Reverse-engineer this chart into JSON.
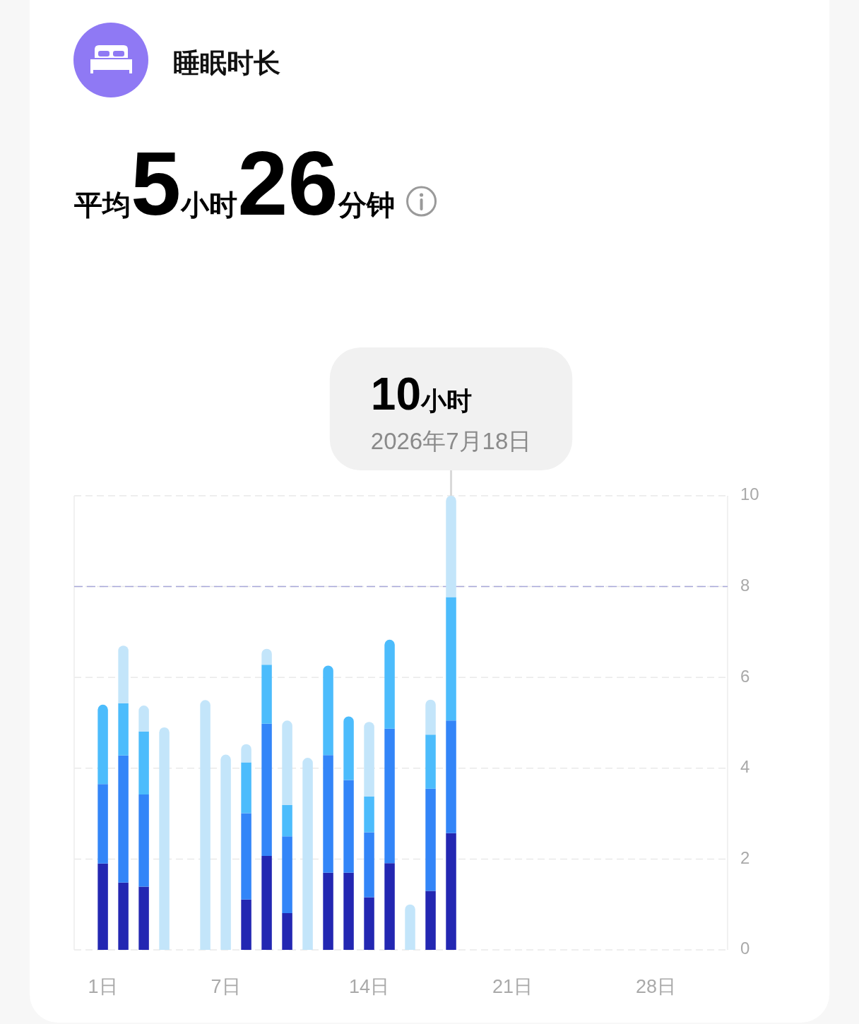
{
  "chart_data": {
    "type": "bar",
    "title": "睡眠时长",
    "subtitle": "平均5小时26分钟",
    "x": [
      1,
      2,
      3,
      4,
      5,
      6,
      7,
      8,
      9,
      10,
      11,
      12,
      13,
      14,
      15,
      16,
      17,
      18
    ],
    "xlim": [
      -0.4,
      31.5
    ],
    "xticks": [
      {
        "value": 1,
        "label": "1日"
      },
      {
        "value": 7,
        "label": "7日"
      },
      {
        "value": 14,
        "label": "14日"
      },
      {
        "value": 21,
        "label": "21日"
      },
      {
        "value": 28,
        "label": "28日"
      }
    ],
    "ylim": [
      0,
      10
    ],
    "yticks": [
      0,
      2,
      4,
      6,
      8,
      10
    ],
    "stacked": true,
    "grid": "y",
    "series": [
      {
        "color": "#2327b2",
        "values": [
          1.9,
          1.48,
          1.39,
          null,
          null,
          null,
          null,
          1.11,
          2.07,
          0.81,
          null,
          1.7,
          1.7,
          1.16,
          1.91,
          null,
          1.3,
          2.57
        ]
      },
      {
        "color": "#3385f8",
        "values": [
          1.75,
          2.8,
          2.03,
          null,
          null,
          null,
          null,
          1.9,
          2.91,
          1.69,
          null,
          2.59,
          2.04,
          1.43,
          2.96,
          null,
          2.25,
          2.48
        ]
      },
      {
        "color": "#4cbcfc",
        "values": [
          1.75,
          1.15,
          1.39,
          null,
          null,
          null,
          null,
          1.12,
          1.3,
          0.69,
          null,
          1.97,
          1.4,
          0.79,
          1.96,
          null,
          1.19,
          2.72
        ]
      },
      {
        "color": "#c3e5fa",
        "values": [
          null,
          1.27,
          0.57,
          4.9,
          null,
          5.5,
          4.3,
          0.4,
          0.35,
          1.86,
          4.23,
          null,
          null,
          1.64,
          null,
          1.0,
          0.77,
          2.23
        ]
      }
    ],
    "ref_lines": [
      {
        "axis": "y",
        "value": 8,
        "color": "#a7a7d8",
        "line_style": "dashed"
      }
    ],
    "annotations": [
      {
        "text": "10小时",
        "x": 18,
        "y": 10
      },
      {
        "text": "2026年7月18日",
        "x": 18,
        "y": 10
      }
    ]
  }
}
